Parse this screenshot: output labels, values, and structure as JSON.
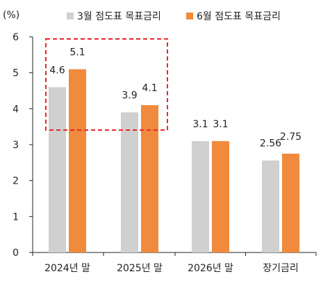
{
  "chart_data": {
    "type": "bar",
    "unit_label": "(%)",
    "categories": [
      "2024년 말",
      "2025년 말",
      "2026년 말",
      "장기금리"
    ],
    "series": [
      {
        "name": "3월 점도표 목표금리",
        "values": [
          4.6,
          3.9,
          3.1,
          2.56
        ],
        "labels": [
          "4.6",
          "3.9",
          "3.1",
          "2.56"
        ],
        "color": "#d0d0d0"
      },
      {
        "name": "6월 점도표 목표금리",
        "values": [
          5.1,
          4.1,
          3.1,
          2.75
        ],
        "labels": [
          "5.1",
          "4.1",
          "3.1",
          "2.75"
        ],
        "color": "#f08a3c"
      }
    ],
    "ylim": [
      0,
      6
    ],
    "yticks": [
      0,
      1,
      2,
      3,
      4,
      5,
      6
    ],
    "legend_position": "top",
    "grid": false,
    "annotation": {
      "type": "dashed-rectangle",
      "color": "#e8262c",
      "covers_categories": [
        "2024년 말",
        "2025년 말"
      ]
    }
  }
}
